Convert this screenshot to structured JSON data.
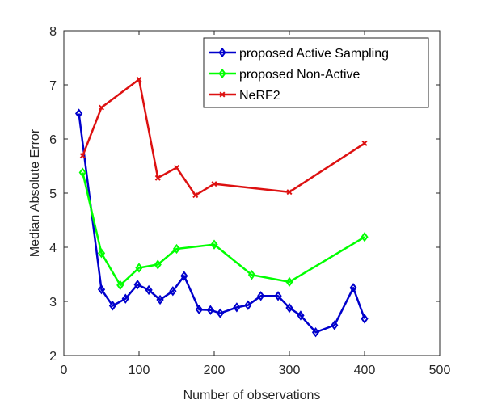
{
  "chart_data": {
    "type": "line",
    "title": "",
    "xlabel": "Number of observations",
    "ylabel": "Median Absolute Error",
    "xlim": [
      0,
      500
    ],
    "ylim": [
      2,
      8
    ],
    "xticks": [
      0,
      100,
      200,
      300,
      400,
      500
    ],
    "yticks": [
      2,
      3,
      4,
      5,
      6,
      7,
      8
    ],
    "grid": false,
    "legend_position": "top-right",
    "series": [
      {
        "name": "proposed Active Sampling",
        "color": "#0000cc",
        "marker": "diamond",
        "x": [
          20,
          50,
          65,
          82,
          98,
          113,
          128,
          145,
          160,
          180,
          195,
          208,
          230,
          245,
          262,
          285,
          300,
          315,
          335,
          360,
          385,
          400
        ],
        "y": [
          6.47,
          3.22,
          2.92,
          3.05,
          3.31,
          3.21,
          3.03,
          3.19,
          3.47,
          2.85,
          2.84,
          2.78,
          2.89,
          2.93,
          3.1,
          3.1,
          2.88,
          2.74,
          2.43,
          2.56,
          3.25,
          2.68
        ]
      },
      {
        "name": "proposed Non-Active",
        "color": "#00ff00",
        "marker": "diamond",
        "x": [
          25,
          50,
          75,
          100,
          125,
          150,
          200,
          250,
          300,
          400
        ],
        "y": [
          5.38,
          3.89,
          3.3,
          3.62,
          3.68,
          3.97,
          4.05,
          3.49,
          3.36,
          4.19
        ]
      },
      {
        "name": "NeRF2",
        "color": "#dd1111",
        "marker": "x",
        "x": [
          25,
          50,
          100,
          125,
          150,
          175,
          200,
          300,
          400
        ],
        "y": [
          5.69,
          6.58,
          7.1,
          5.28,
          5.47,
          4.96,
          5.17,
          5.02,
          5.92
        ]
      }
    ]
  }
}
